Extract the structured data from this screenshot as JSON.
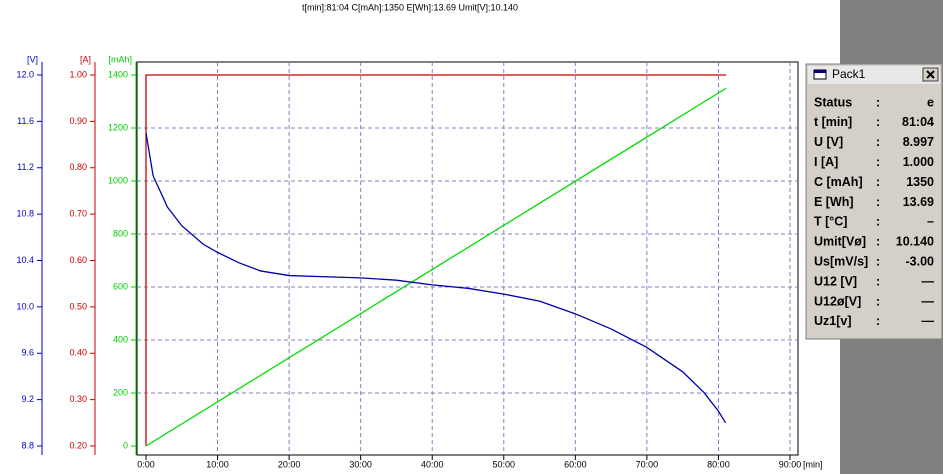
{
  "header": "t[min]:81:04  C[mAh]:1350  E[Wh]:13.69 Umit[V]:10.140",
  "chart_data": {
    "type": "line",
    "x_label": "[min]",
    "xlim": [
      0,
      90
    ],
    "xticks": [
      {
        "value": 0,
        "label": "0:00"
      },
      {
        "value": 10,
        "label": "10:00"
      },
      {
        "value": 20,
        "label": "20:00"
      },
      {
        "value": 30,
        "label": "30:00"
      },
      {
        "value": 40,
        "label": "40:00"
      },
      {
        "value": 50,
        "label": "50:00"
      },
      {
        "value": 60,
        "label": "60:00"
      },
      {
        "value": 70,
        "label": "70:00"
      },
      {
        "value": 80,
        "label": "80:00"
      },
      {
        "value": 90,
        "label": "90:00"
      }
    ],
    "y_label": "[mAh]",
    "y_color": "#00cc00",
    "ylim": [
      0,
      1400
    ],
    "yticks": [
      0,
      200,
      400,
      600,
      800,
      1000,
      1200,
      1400
    ],
    "y2_label": "[V]",
    "y2_color": "#0000cc",
    "y2lim": [
      8.8,
      12.0
    ],
    "y2ticks": [
      8.8,
      9.2,
      9.6,
      {
        "value": 10.0,
        "label": "10.0"
      },
      10.4,
      10.8,
      11.2,
      11.6,
      {
        "value": 12.0,
        "label": "12.0"
      }
    ],
    "y3_label": "[A]",
    "y3_color": "#cc0000",
    "y3lim": [
      0.2,
      1.0
    ],
    "y3ticks": [
      {
        "value": 0.2,
        "label": "0.20"
      },
      {
        "value": 0.3,
        "label": "0.30"
      },
      {
        "value": 0.4,
        "label": "0.40"
      },
      {
        "value": 0.5,
        "label": "0.50"
      },
      {
        "value": 0.6,
        "label": "0.60"
      },
      {
        "value": 0.7,
        "label": "0.70"
      },
      {
        "value": 0.8,
        "label": "0.80"
      },
      {
        "value": 0.9,
        "label": "0.90"
      },
      {
        "value": 1.0,
        "label": "1.00"
      }
    ],
    "grid": true,
    "series": [
      {
        "axis": "y3",
        "color": "#cc0000",
        "x": [
          0,
          0,
          81.07
        ],
        "values": [
          0.2,
          1.0,
          1.0
        ]
      },
      {
        "axis": "y",
        "color": "#00dd00",
        "x": [
          0,
          81.07
        ],
        "values": [
          0,
          1350
        ]
      },
      {
        "axis": "y2",
        "color": "#0000aa",
        "x": [
          0,
          1,
          3,
          5,
          8,
          10,
          13,
          16,
          20,
          25,
          30,
          35,
          40,
          45,
          50,
          55,
          60,
          65,
          70,
          75,
          78,
          80,
          81
        ],
        "values": [
          11.5,
          11.13,
          10.86,
          10.7,
          10.54,
          10.47,
          10.38,
          10.31,
          10.27,
          10.26,
          10.25,
          10.23,
          10.19,
          10.16,
          10.11,
          10.05,
          9.94,
          9.81,
          9.65,
          9.44,
          9.26,
          9.1,
          9.0
        ]
      }
    ]
  },
  "panel": {
    "title": "Pack1",
    "separator": ":",
    "rows": [
      [
        "Status",
        "e"
      ],
      [
        "t [min]",
        "81:04"
      ],
      [
        "U [V]",
        "8.997"
      ],
      [
        "I [A]",
        "1.000"
      ],
      [
        "C [mAh]",
        "1350"
      ],
      [
        "E [Wh]",
        "13.69"
      ],
      [
        "T [°C]",
        "–"
      ],
      [
        "Umit[Vø]",
        "10.140"
      ],
      [
        "Us[mV/s]",
        "-3.00"
      ],
      [
        "U12 [V]",
        "—"
      ],
      [
        "U12ø[V]",
        "—"
      ],
      [
        "Uz1[v]",
        "—"
      ]
    ]
  }
}
